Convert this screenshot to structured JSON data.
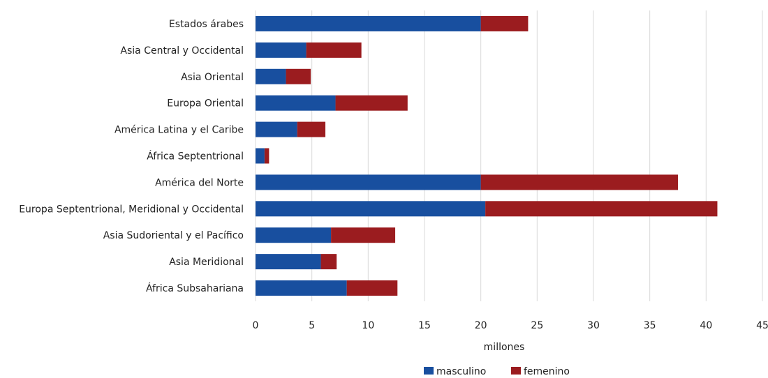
{
  "chart_data": {
    "type": "bar",
    "orientation": "horizontal",
    "stacked": true,
    "title": "",
    "xlabel": "millones",
    "ylabel": "",
    "xlim": [
      0,
      45
    ],
    "x_ticks": [
      "0",
      "5",
      "10",
      "15",
      "20",
      "25",
      "30",
      "35",
      "40",
      "45"
    ],
    "grid": "vertical",
    "legend_position": "bottom",
    "categories": [
      "Estados árabes",
      "Asia Central y Occidental",
      "Asia Oriental",
      "Europa Oriental",
      "América Latina y el Caribe",
      "África Septentrional",
      "América del Norte",
      "Europa Septentrional, Meridional y Occidental",
      "Asia Sudoriental y el Pacífico",
      "Asia Meridional",
      "África Subsahariana"
    ],
    "series": [
      {
        "name": "masculino",
        "color": "#184f9f",
        "values": [
          20.0,
          4.5,
          2.7,
          7.1,
          3.7,
          0.8,
          20.0,
          20.4,
          6.7,
          5.8,
          8.1
        ]
      },
      {
        "name": "femenino",
        "color": "#9b1c1f",
        "values": [
          4.2,
          4.9,
          2.2,
          6.4,
          2.5,
          0.4,
          17.5,
          20.6,
          5.7,
          1.4,
          4.5
        ]
      }
    ]
  }
}
